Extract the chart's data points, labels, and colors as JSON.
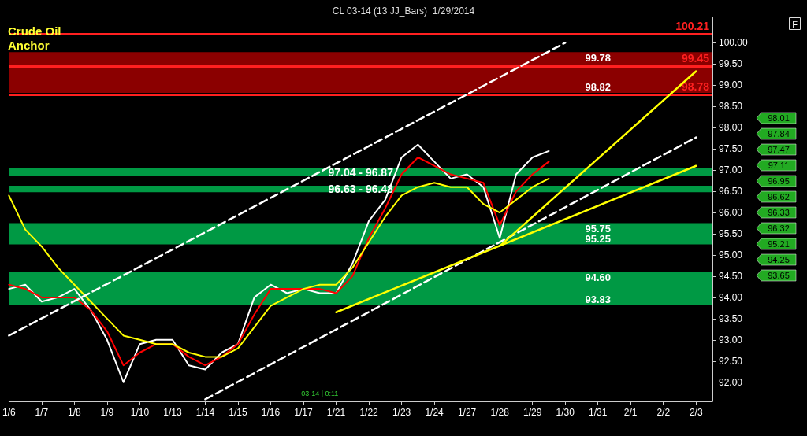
{
  "chart_data": {
    "type": "line",
    "title": "CL 03-14 (13 JJ_Bars)  1/29/2014",
    "categories": [
      "1/6",
      null,
      "1/7",
      null,
      "1/8",
      null,
      "1/9",
      null,
      "1/10",
      null,
      "1/13",
      null,
      "1/14",
      null,
      "1/15",
      null,
      "1/16",
      null,
      "1/17",
      null,
      "1/21",
      null,
      "1/22",
      null,
      "1/23",
      null,
      "1/24",
      null,
      "1/27",
      null,
      "1/28",
      null,
      "1/29",
      null,
      "1/30",
      null,
      "1/31",
      null,
      "2/1",
      null,
      "2/2",
      null,
      "2/3",
      null
    ],
    "series": [
      {
        "color": "#ffffff",
        "values": [
          94.2,
          94.3,
          93.9,
          94.0,
          94.2,
          93.7,
          93.0,
          92.0,
          92.9,
          93.0,
          93.0,
          92.4,
          92.3,
          92.7,
          92.9,
          94.0,
          94.3,
          94.1,
          94.2,
          94.1,
          94.1,
          94.8,
          95.8,
          96.3,
          97.3,
          97.6,
          97.2,
          96.8,
          96.9,
          96.6,
          95.4,
          96.9,
          97.3,
          97.45,
          null,
          null,
          null,
          null,
          null,
          null,
          null,
          null,
          null,
          null
        ]
      },
      {
        "color": "#ff0000",
        "values": [
          94.3,
          94.2,
          94.0,
          94.0,
          94.0,
          93.7,
          93.2,
          92.4,
          92.7,
          92.9,
          92.9,
          92.6,
          92.4,
          92.6,
          92.9,
          93.6,
          94.2,
          94.2,
          94.2,
          94.2,
          94.1,
          94.5,
          95.4,
          96.1,
          96.9,
          97.3,
          97.1,
          96.9,
          96.8,
          96.7,
          95.7,
          96.5,
          96.9,
          97.2,
          null,
          null,
          null,
          null,
          null,
          null,
          null,
          null,
          null,
          null
        ]
      },
      {
        "color": "#ffff00",
        "values": [
          96.4,
          95.6,
          95.2,
          94.7,
          94.3,
          93.9,
          93.5,
          93.1,
          93.0,
          92.9,
          92.9,
          92.7,
          92.6,
          92.6,
          92.8,
          93.3,
          93.8,
          94.0,
          94.2,
          94.3,
          94.3,
          94.7,
          95.3,
          95.9,
          96.4,
          96.6,
          96.7,
          96.6,
          96.6,
          96.2,
          96.0,
          96.3,
          96.6,
          96.8,
          null,
          null,
          null,
          null,
          null,
          null,
          null,
          null,
          null,
          null
        ]
      },
      {
        "type": "line",
        "color": "#ffffff",
        "line_style": "dashed",
        "x": [
          "1/6",
          "1/30"
        ],
        "values": [
          93.1,
          100.0
        ]
      },
      {
        "type": "line",
        "color": "#ffffff",
        "line_style": "dashed",
        "x": [
          "1/14",
          "2/3"
        ],
        "values": [
          91.6,
          97.77
        ]
      },
      {
        "type": "line",
        "color": "#ffff00",
        "x": [
          "1/21",
          "2/3"
        ],
        "values": [
          93.65,
          97.1
        ]
      },
      {
        "type": "line",
        "color": "#ffff00",
        "x": [
          "1/28",
          "2/3"
        ],
        "values": [
          95.21,
          99.33
        ]
      }
    ],
    "ylim": [
      91.55,
      100.6
    ],
    "yticks": [
      {
        "value": 92,
        "label": "92.00"
      },
      {
        "value": 92.5,
        "label": "92.50"
      },
      {
        "value": 93,
        "label": "93.00"
      },
      {
        "value": 93.5,
        "label": "93.50"
      },
      {
        "value": 94,
        "label": "94.00"
      },
      {
        "value": 94.5,
        "label": "94.50"
      },
      {
        "value": 95,
        "label": "95.00"
      },
      {
        "value": 95.5,
        "label": "95.50"
      },
      {
        "value": 96,
        "label": "96.00"
      },
      {
        "value": 96.5,
        "label": "96.50"
      },
      {
        "value": 97,
        "label": "97.00"
      },
      {
        "value": 97.5,
        "label": "97.50"
      },
      {
        "value": 98,
        "label": "98.00"
      },
      {
        "value": 98.5,
        "label": "98.50"
      },
      {
        "value": 99,
        "label": "99.00"
      },
      {
        "value": 99.5,
        "label": "99.50"
      },
      {
        "value": 100,
        "label": "100.00"
      }
    ],
    "ref_lines": [
      {
        "axis": "y",
        "value": 100.21,
        "label": "100.21",
        "color": "#ff2020"
      },
      {
        "axis": "y",
        "value": 99.45,
        "label": "99.45",
        "color": "#ff2020"
      },
      {
        "axis": "y",
        "value": 98.78,
        "label": "98.78",
        "color": "#ff2020"
      }
    ],
    "bands": [
      {
        "axis": "y",
        "from": 98.82,
        "to": 99.78,
        "color": "#8b0000"
      },
      {
        "axis": "y",
        "from": 96.87,
        "to": 97.04,
        "label": "97.04 - 96.87",
        "color": "#009944"
      },
      {
        "axis": "y",
        "from": 96.48,
        "to": 96.63,
        "label": "96.63 - 96.48",
        "color": "#009944"
      },
      {
        "axis": "y",
        "from": 95.25,
        "to": 95.75,
        "color": "#009944"
      },
      {
        "axis": "y",
        "from": 93.83,
        "to": 94.6,
        "color": "#009944"
      }
    ],
    "annotations": [
      "Crude Oil Anchor",
      "F",
      "03-14 | 0:11",
      "98.01",
      "97.84",
      "97.47",
      "97.11",
      "96.95",
      "96.62",
      "96.33",
      "96.32",
      "95.21",
      "94.25",
      "93.65",
      {
        "text": "99.78",
        "x": "1/31",
        "y": 99.78
      },
      {
        "text": "98.82",
        "x": "1/31",
        "y": 98.82
      },
      {
        "text": "95.75",
        "x": "1/31",
        "y": 95.75
      },
      {
        "text": "95.25",
        "x": "1/31",
        "y": 95.25
      },
      {
        "text": "94.60",
        "x": "1/31",
        "y": 94.6
      },
      {
        "text": "93.83",
        "x": "1/31",
        "y": 93.83
      }
    ],
    "grid": false,
    "marker": "none"
  }
}
